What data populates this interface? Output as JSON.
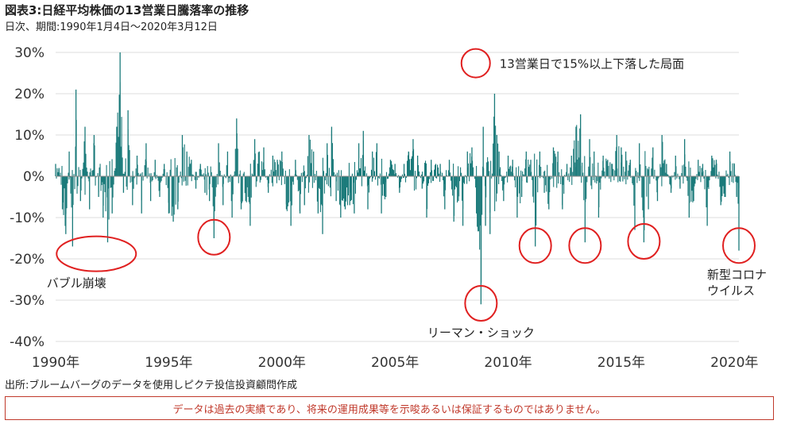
{
  "header": {
    "title": "図表3:日経平均株価の13営業日騰落率の推移",
    "subtitle": "日次、期間:1990年1月4日～2020年3月12日"
  },
  "footer": {
    "source": "出所:ブルームバーグのデータを使用しピクテ投信投資顧問作成",
    "disclaimer": "データは過去の実績であり、将来の運用成果等を示唆あるいは保証するものではありません。"
  },
  "colors": {
    "series": "#1a7a7a",
    "highlight": "#e02020",
    "axis": "#888888"
  },
  "chart_data": {
    "type": "area",
    "title": "図表3:日経平均株価の13営業日騰落率の推移",
    "xlabel": "",
    "ylabel": "",
    "xlim": [
      1990.0,
      2020.2
    ],
    "ylim": [
      -40,
      30
    ],
    "y_ticks": [
      {
        "value": 30,
        "label": "30%"
      },
      {
        "value": 20,
        "label": "20%"
      },
      {
        "value": 10,
        "label": "10%"
      },
      {
        "value": 0,
        "label": "0%"
      },
      {
        "value": -10,
        "label": "-10%"
      },
      {
        "value": -20,
        "label": "-20%"
      },
      {
        "value": -30,
        "label": "-30%"
      },
      {
        "value": -40,
        "label": "-40%"
      }
    ],
    "x_ticks": [
      {
        "value": 1990,
        "label": "1990年"
      },
      {
        "value": 1995,
        "label": "1995年"
      },
      {
        "value": 2000,
        "label": "2000年"
      },
      {
        "value": 2005,
        "label": "2005年"
      },
      {
        "value": 2010,
        "label": "2010年"
      },
      {
        "value": 2015,
        "label": "2015年"
      },
      {
        "value": 2020,
        "label": "2020年"
      }
    ],
    "grid": "y",
    "series": [
      {
        "values": [
          [
            1990.0,
            3
          ],
          [
            1990.15,
            2
          ],
          [
            1990.3,
            -8
          ],
          [
            1990.45,
            -14
          ],
          [
            1990.6,
            6
          ],
          [
            1990.75,
            -17
          ],
          [
            1990.9,
            21
          ],
          [
            1991.1,
            -6
          ],
          [
            1991.3,
            12
          ],
          [
            1991.5,
            -8
          ],
          [
            1991.7,
            10
          ],
          [
            1991.9,
            -5
          ],
          [
            1992.1,
            -10
          ],
          [
            1992.3,
            -16
          ],
          [
            1992.5,
            -9
          ],
          [
            1992.7,
            12
          ],
          [
            1992.85,
            30
          ],
          [
            1993.0,
            -4
          ],
          [
            1993.2,
            16
          ],
          [
            1993.4,
            -7
          ],
          [
            1993.6,
            5
          ],
          [
            1993.8,
            -9
          ],
          [
            1994.0,
            8
          ],
          [
            1994.2,
            -6
          ],
          [
            1994.4,
            4
          ],
          [
            1994.6,
            -5
          ],
          [
            1994.8,
            3
          ],
          [
            1995.0,
            -9
          ],
          [
            1995.2,
            -11
          ],
          [
            1995.4,
            -8
          ],
          [
            1995.6,
            10
          ],
          [
            1995.8,
            6
          ],
          [
            1996.0,
            4
          ],
          [
            1996.2,
            -3
          ],
          [
            1996.4,
            3
          ],
          [
            1996.6,
            -4
          ],
          [
            1996.8,
            -6
          ],
          [
            1997.0,
            -15
          ],
          [
            1997.2,
            8
          ],
          [
            1997.4,
            -7
          ],
          [
            1997.6,
            6
          ],
          [
            1997.8,
            -10
          ],
          [
            1998.0,
            14
          ],
          [
            1998.2,
            -8
          ],
          [
            1998.4,
            -6
          ],
          [
            1998.6,
            -12
          ],
          [
            1998.8,
            9
          ],
          [
            1999.0,
            6
          ],
          [
            1999.2,
            7
          ],
          [
            1999.4,
            -4
          ],
          [
            1999.6,
            5
          ],
          [
            1999.8,
            4
          ],
          [
            2000.0,
            6
          ],
          [
            2000.2,
            -8
          ],
          [
            2000.4,
            -12
          ],
          [
            2000.6,
            4
          ],
          [
            2000.8,
            -9
          ],
          [
            2001.0,
            -7
          ],
          [
            2001.2,
            10
          ],
          [
            2001.4,
            6
          ],
          [
            2001.6,
            -9
          ],
          [
            2001.8,
            -14
          ],
          [
            2002.0,
            8
          ],
          [
            2002.2,
            12
          ],
          [
            2002.4,
            -6
          ],
          [
            2002.6,
            -10
          ],
          [
            2002.8,
            -8
          ],
          [
            2003.0,
            -7
          ],
          [
            2003.2,
            -9
          ],
          [
            2003.4,
            8
          ],
          [
            2003.6,
            11
          ],
          [
            2003.8,
            -8
          ],
          [
            2004.0,
            6
          ],
          [
            2004.2,
            8
          ],
          [
            2004.4,
            -9
          ],
          [
            2004.6,
            -5
          ],
          [
            2004.8,
            4
          ],
          [
            2005.0,
            3
          ],
          [
            2005.2,
            -4
          ],
          [
            2005.4,
            3
          ],
          [
            2005.6,
            6
          ],
          [
            2005.8,
            9
          ],
          [
            2006.0,
            5
          ],
          [
            2006.2,
            -3
          ],
          [
            2006.4,
            -10
          ],
          [
            2006.6,
            4
          ],
          [
            2006.8,
            3
          ],
          [
            2007.0,
            3
          ],
          [
            2007.2,
            -8
          ],
          [
            2007.4,
            4
          ],
          [
            2007.6,
            -11
          ],
          [
            2007.8,
            -6
          ],
          [
            2008.0,
            -12
          ],
          [
            2008.2,
            6
          ],
          [
            2008.4,
            7
          ],
          [
            2008.6,
            -9
          ],
          [
            2008.8,
            -31
          ],
          [
            2008.9,
            12
          ],
          [
            2009.0,
            -12
          ],
          [
            2009.2,
            -14
          ],
          [
            2009.4,
            20
          ],
          [
            2009.5,
            10
          ],
          [
            2009.6,
            6
          ],
          [
            2009.8,
            -6
          ],
          [
            2010.0,
            5
          ],
          [
            2010.2,
            4
          ],
          [
            2010.4,
            -10
          ],
          [
            2010.6,
            -5
          ],
          [
            2010.8,
            6
          ],
          [
            2011.0,
            4
          ],
          [
            2011.2,
            -17
          ],
          [
            2011.4,
            6
          ],
          [
            2011.6,
            -4
          ],
          [
            2011.8,
            -8
          ],
          [
            2012.0,
            7
          ],
          [
            2012.2,
            6
          ],
          [
            2012.4,
            -8
          ],
          [
            2012.6,
            3
          ],
          [
            2012.8,
            5
          ],
          [
            2013.0,
            12
          ],
          [
            2013.2,
            15
          ],
          [
            2013.4,
            -16
          ],
          [
            2013.6,
            9
          ],
          [
            2013.8,
            6
          ],
          [
            2014.0,
            -10
          ],
          [
            2014.2,
            5
          ],
          [
            2014.4,
            4
          ],
          [
            2014.6,
            3
          ],
          [
            2014.8,
            10
          ],
          [
            2015.0,
            7
          ],
          [
            2015.2,
            6
          ],
          [
            2015.4,
            4
          ],
          [
            2015.6,
            -13
          ],
          [
            2015.8,
            8
          ],
          [
            2016.0,
            -16
          ],
          [
            2016.2,
            -8
          ],
          [
            2016.4,
            7
          ],
          [
            2016.6,
            -6
          ],
          [
            2016.8,
            10
          ],
          [
            2017.0,
            3
          ],
          [
            2017.2,
            -4
          ],
          [
            2017.4,
            5
          ],
          [
            2017.6,
            -3
          ],
          [
            2017.8,
            9
          ],
          [
            2018.0,
            -10
          ],
          [
            2018.2,
            -6
          ],
          [
            2018.4,
            4
          ],
          [
            2018.6,
            3
          ],
          [
            2018.8,
            -12
          ],
          [
            2019.0,
            5
          ],
          [
            2019.2,
            4
          ],
          [
            2019.4,
            -7
          ],
          [
            2019.6,
            -5
          ],
          [
            2019.8,
            6
          ],
          [
            2020.0,
            3
          ],
          [
            2020.1,
            -5
          ],
          [
            2020.2,
            -18
          ]
        ]
      }
    ],
    "annotations": [
      {
        "label": "13営業日で15%以上下落した局面",
        "x": 2009.2,
        "y": 27,
        "type": "legend-circle"
      },
      {
        "label": "バブル崩壊",
        "x": 1991.8,
        "y": -18
      },
      {
        "label": "",
        "x": 1997.0,
        "y": -14
      },
      {
        "label": "リーマン・ショック",
        "x": 2008.8,
        "y": -30
      },
      {
        "label": "",
        "x": 2011.2,
        "y": -16
      },
      {
        "label": "",
        "x": 2013.4,
        "y": -16
      },
      {
        "label": "",
        "x": 2016.0,
        "y": -15
      },
      {
        "label": "新型コロナ\nウイルス",
        "x": 2020.2,
        "y": -16
      }
    ]
  }
}
